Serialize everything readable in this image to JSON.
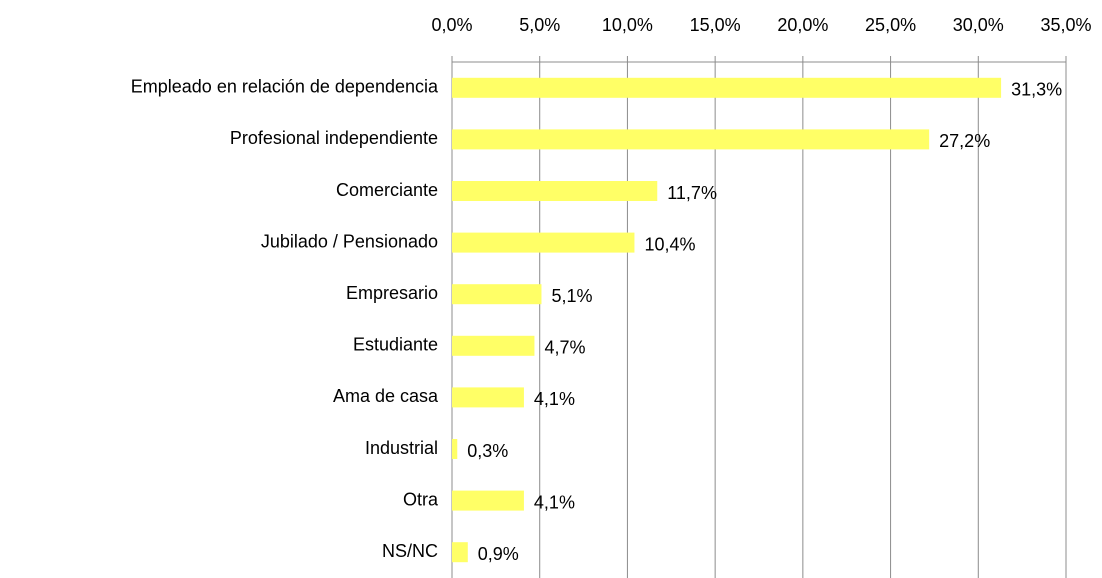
{
  "chart_data": {
    "type": "bar",
    "orientation": "horizontal",
    "categories": [
      "Empleado en relación de dependencia",
      "Profesional independiente",
      "Comerciante",
      "Jubilado / Pensionado",
      "Empresario",
      "Estudiante",
      "Ama de casa",
      "Industrial",
      "Otra",
      "NS/NC"
    ],
    "values": [
      31.3,
      27.2,
      11.7,
      10.4,
      5.1,
      4.7,
      4.1,
      0.3,
      4.1,
      0.9
    ],
    "value_labels": [
      "31,3%",
      "27,2%",
      "11,7%",
      "10,4%",
      "5,1%",
      "4,7%",
      "4,1%",
      "0,3%",
      "4,1%",
      "0,9%"
    ],
    "color": "#ffff66",
    "xlim": [
      0,
      35
    ],
    "xticks": [
      {
        "value": 0,
        "label": "0,0%"
      },
      {
        "value": 5,
        "label": "5,0%"
      },
      {
        "value": 10,
        "label": "10,0%"
      },
      {
        "value": 15,
        "label": "15,0%"
      },
      {
        "value": 20,
        "label": "20,0%"
      },
      {
        "value": 25,
        "label": "25,0%"
      },
      {
        "value": 30,
        "label": "30,0%"
      },
      {
        "value": 35,
        "label": "35,0%"
      }
    ],
    "grid": true
  }
}
